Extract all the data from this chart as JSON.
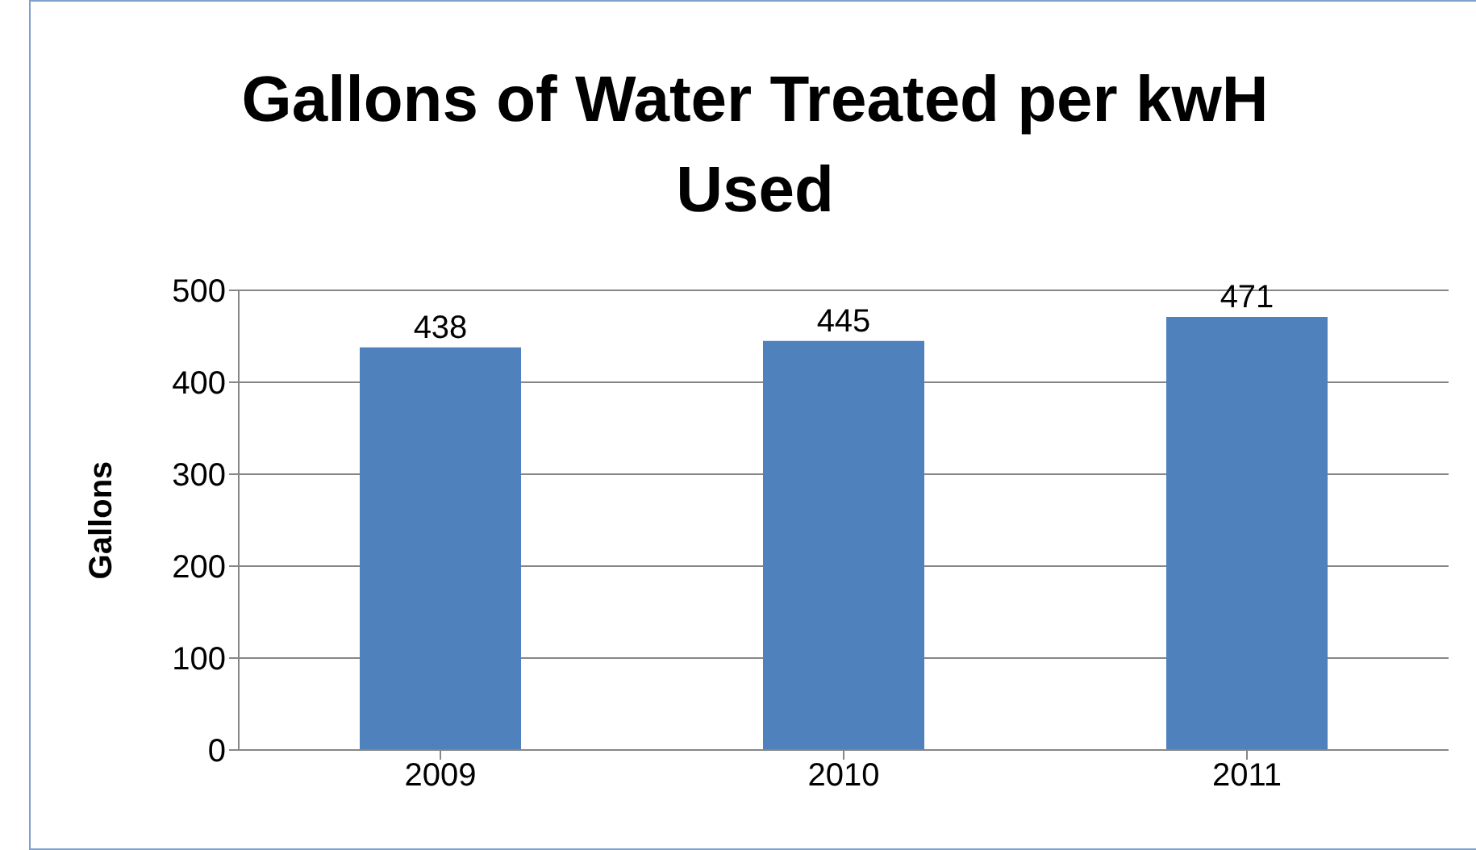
{
  "chart_data": {
    "type": "bar",
    "title": "Gallons of Water Treated per kwH Used",
    "ylabel": "Gallons",
    "categories": [
      "2009",
      "2010",
      "2011"
    ],
    "values": [
      438,
      445,
      471
    ],
    "color": "#4f81bd",
    "ylim": [
      0,
      500
    ],
    "yticks": [
      0,
      100,
      200,
      300,
      400,
      500
    ],
    "grid": "y",
    "data_labels": true
  }
}
